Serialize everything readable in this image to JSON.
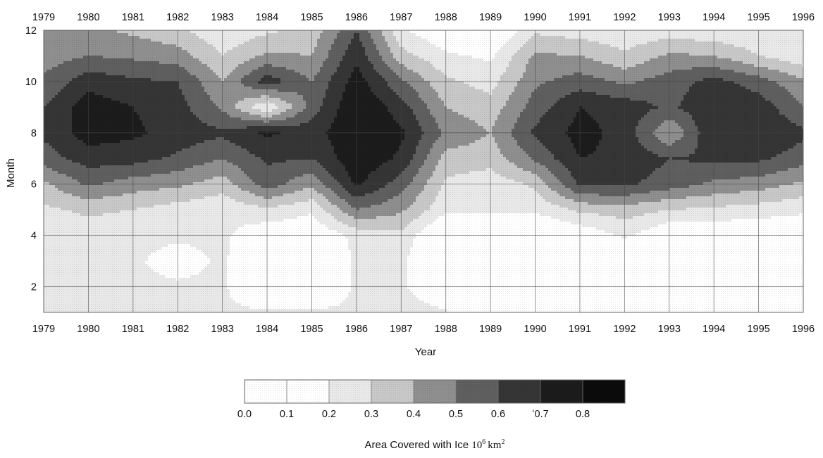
{
  "chart_data": {
    "type": "heatmap",
    "title": "",
    "xlabel": "Year",
    "ylabel": "Month",
    "x_ticks": [
      "1979",
      "1980",
      "1981",
      "1982",
      "1983",
      "1984",
      "1985",
      "1986",
      "1987",
      "1988",
      "1989",
      "1990",
      "1991",
      "1992",
      "1993",
      "1994",
      "1995",
      "1996"
    ],
    "y_ticks": [
      "2",
      "4",
      "6",
      "8",
      "10",
      "12"
    ],
    "xlim": [
      1979,
      1996
    ],
    "ylim": [
      1,
      12
    ],
    "grid": true,
    "colorbar": {
      "title_prefix": "Area Covered with Ice",
      "title_units": "10",
      "title_exp": "6",
      "title_km": "km",
      "title_km_exp": "2",
      "tick_labels": [
        "0.0",
        "0.1",
        "0.2",
        "0.3",
        "0.4",
        "0.5",
        "0.6",
        "ʻ0.7",
        "0.8"
      ],
      "bins": [
        0.0,
        0.1,
        0.2,
        0.3,
        0.4,
        0.5,
        0.6,
        0.7,
        0.8,
        0.9
      ],
      "colors": [
        "#ffffff",
        "#ffffff",
        "#e9e9e9",
        "#c8c8c8",
        "#8f8f8f",
        "#5f5f5f",
        "#353535",
        "#1c1c1c",
        "#0b0b0b"
      ]
    },
    "grid_years": [
      1979,
      1980,
      1981,
      1982,
      1983,
      1984,
      1985,
      1986,
      1987,
      1988,
      1989,
      1990,
      1991,
      1992,
      1993,
      1994,
      1995,
      1996
    ],
    "grid_months": [
      1,
      2,
      3,
      4,
      5,
      6,
      7,
      8,
      9,
      10,
      11,
      12
    ],
    "values": [
      [
        0.22,
        0.22,
        0.22,
        0.22,
        0.28,
        0.38,
        0.55,
        0.62,
        0.6,
        0.52,
        0.45,
        0.4
      ],
      [
        0.22,
        0.22,
        0.22,
        0.25,
        0.32,
        0.52,
        0.65,
        0.75,
        0.76,
        0.66,
        0.5,
        0.42
      ],
      [
        0.22,
        0.22,
        0.22,
        0.23,
        0.3,
        0.45,
        0.64,
        0.72,
        0.7,
        0.62,
        0.48,
        0.38
      ],
      [
        0.22,
        0.22,
        0.15,
        0.22,
        0.25,
        0.42,
        0.58,
        0.66,
        0.64,
        0.6,
        0.45,
        0.32
      ],
      [
        0.22,
        0.22,
        0.22,
        0.22,
        0.22,
        0.35,
        0.5,
        0.62,
        0.48,
        0.4,
        0.3,
        0.22
      ],
      [
        0.22,
        0.05,
        0.05,
        0.12,
        0.28,
        0.55,
        0.62,
        0.72,
        0.2,
        0.66,
        0.42,
        0.28
      ],
      [
        0.22,
        0.05,
        0.05,
        0.1,
        0.22,
        0.42,
        0.6,
        0.65,
        0.55,
        0.5,
        0.4,
        0.34
      ],
      [
        0.22,
        0.22,
        0.22,
        0.23,
        0.5,
        0.72,
        0.78,
        0.8,
        0.8,
        0.75,
        0.68,
        0.6
      ],
      [
        0.28,
        0.22,
        0.22,
        0.27,
        0.42,
        0.55,
        0.68,
        0.72,
        0.65,
        0.52,
        0.34,
        0.22
      ],
      [
        0.22,
        0.05,
        0.05,
        0.05,
        0.22,
        0.28,
        0.36,
        0.48,
        0.4,
        0.32,
        0.22,
        0.1
      ],
      [
        0.05,
        0.05,
        0.05,
        0.05,
        0.22,
        0.24,
        0.34,
        0.4,
        0.34,
        0.26,
        0.18,
        0.05
      ],
      [
        0.05,
        0.05,
        0.05,
        0.05,
        0.22,
        0.32,
        0.52,
        0.62,
        0.55,
        0.48,
        0.42,
        0.28
      ],
      [
        0.05,
        0.05,
        0.05,
        0.12,
        0.32,
        0.62,
        0.7,
        0.74,
        0.7,
        0.55,
        0.4,
        0.25
      ],
      [
        0.05,
        0.05,
        0.05,
        0.22,
        0.35,
        0.62,
        0.68,
        0.66,
        0.66,
        0.48,
        0.32,
        0.22
      ],
      [
        0.05,
        0.05,
        0.05,
        0.1,
        0.3,
        0.55,
        0.6,
        0.4,
        0.58,
        0.55,
        0.42,
        0.25
      ],
      [
        0.05,
        0.05,
        0.05,
        0.1,
        0.28,
        0.48,
        0.62,
        0.7,
        0.68,
        0.64,
        0.4,
        0.22
      ],
      [
        0.05,
        0.05,
        0.05,
        0.1,
        0.25,
        0.45,
        0.62,
        0.7,
        0.66,
        0.55,
        0.3,
        0.22
      ],
      [
        0.05,
        0.05,
        0.05,
        0.1,
        0.22,
        0.38,
        0.55,
        0.62,
        0.5,
        0.42,
        0.22,
        0.22
      ]
    ]
  }
}
